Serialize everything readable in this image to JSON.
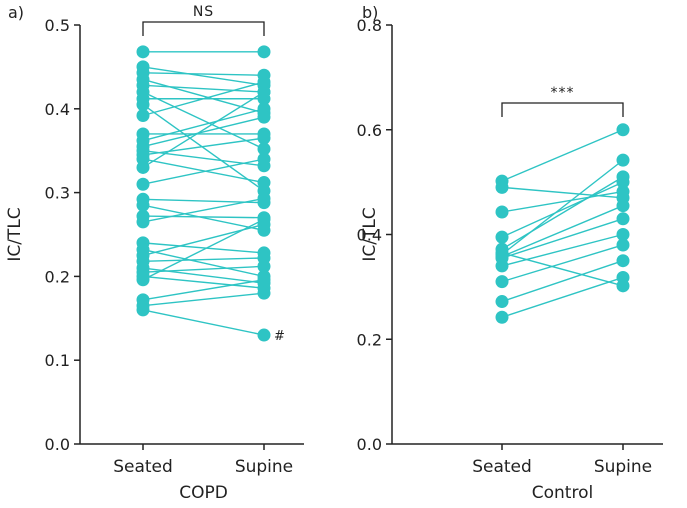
{
  "colors": {
    "series": "#2ec4c4",
    "axis": "#222222"
  },
  "chart_data": [
    {
      "panel_label": "a)",
      "type": "scatter",
      "style": "paired-lines",
      "title": "",
      "xlabel": "COPD",
      "ylabel": "IC/TLC",
      "categories": [
        "Seated",
        "Supine"
      ],
      "ylim": [
        0.0,
        0.5
      ],
      "yticks": [
        "0.0",
        "0.1",
        "0.2",
        "0.3",
        "0.4",
        "0.5"
      ],
      "significance": "NS",
      "point_annotation": {
        "label": "#",
        "series": 1,
        "value": 0.13
      },
      "pairs": [
        [
          0.468,
          0.468
        ],
        [
          0.45,
          0.428
        ],
        [
          0.443,
          0.44
        ],
        [
          0.435,
          0.395
        ],
        [
          0.428,
          0.42
        ],
        [
          0.42,
          0.352
        ],
        [
          0.412,
          0.412
        ],
        [
          0.405,
          0.302
        ],
        [
          0.392,
          0.432
        ],
        [
          0.37,
          0.37
        ],
        [
          0.362,
          0.4
        ],
        [
          0.355,
          0.39
        ],
        [
          0.35,
          0.332
        ],
        [
          0.345,
          0.365
        ],
        [
          0.34,
          0.312
        ],
        [
          0.33,
          0.42
        ],
        [
          0.31,
          0.34
        ],
        [
          0.292,
          0.288
        ],
        [
          0.285,
          0.255
        ],
        [
          0.272,
          0.27
        ],
        [
          0.265,
          0.293
        ],
        [
          0.24,
          0.228
        ],
        [
          0.232,
          0.2
        ],
        [
          0.225,
          0.262
        ],
        [
          0.218,
          0.222
        ],
        [
          0.21,
          0.192
        ],
        [
          0.205,
          0.212
        ],
        [
          0.2,
          0.186
        ],
        [
          0.196,
          0.268
        ],
        [
          0.172,
          0.196
        ],
        [
          0.165,
          0.18
        ],
        [
          0.16,
          0.13
        ]
      ]
    },
    {
      "panel_label": "b)",
      "type": "scatter",
      "style": "paired-lines",
      "title": "",
      "xlabel": "Control",
      "ylabel": "IC/TLC",
      "categories": [
        "Seated",
        "Supine"
      ],
      "ylim": [
        0.0,
        0.8
      ],
      "yticks": [
        "0.0",
        "0.2",
        "0.4",
        "0.6",
        "0.8"
      ],
      "significance": "***",
      "pairs": [
        [
          0.502,
          0.6
        ],
        [
          0.49,
          0.47
        ],
        [
          0.443,
          0.482
        ],
        [
          0.395,
          0.5
        ],
        [
          0.372,
          0.51
        ],
        [
          0.362,
          0.542
        ],
        [
          0.358,
          0.455
        ],
        [
          0.355,
          0.43
        ],
        [
          0.34,
          0.4
        ],
        [
          0.31,
          0.38
        ],
        [
          0.272,
          0.35
        ],
        [
          0.242,
          0.318
        ],
        [
          0.365,
          0.302
        ]
      ]
    }
  ]
}
